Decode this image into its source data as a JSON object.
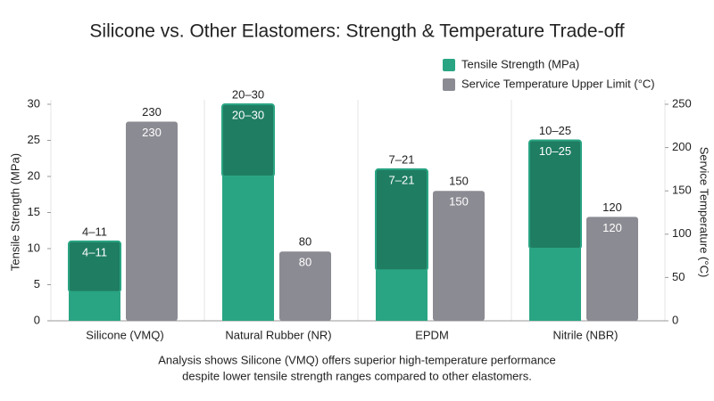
{
  "chart_data": {
    "type": "bar",
    "title": "Silicone vs. Other Elastomers: Strength & Temperature Trade-off",
    "categories": [
      "Silicone (VMQ)",
      "Natural Rubber (NR)",
      "EPDM",
      "Nitrile (NBR)"
    ],
    "series": [
      {
        "name": "Tensile Strength (MPa)",
        "color": "#2aa583",
        "range_color": "#1f7d62",
        "low": [
          4,
          20,
          7,
          10
        ],
        "values": [
          11,
          30,
          21,
          25
        ],
        "value_labels": [
          "4–11",
          "20–30",
          "7–21",
          "10–25"
        ]
      },
      {
        "name": "Service Temperature Upper Limit (°C)",
        "color": "#8b8b93",
        "axis": "y2",
        "values": [
          230,
          80,
          150,
          120
        ]
      }
    ],
    "ylabel": "Tensile Strength (MPa)",
    "y2label": "Service Temperature (°C)",
    "ylim": [
      0,
      30
    ],
    "yticks": [
      0,
      5,
      10,
      15,
      20,
      25,
      30
    ],
    "y2lim": [
      0,
      250
    ],
    "y2ticks": [
      0,
      50,
      100,
      150,
      200,
      250
    ],
    "caption": [
      "Analysis shows Silicone (VMQ) offers superior high-temperature performance",
      "despite lower tensile strength ranges compared to other elastomers."
    ]
  }
}
